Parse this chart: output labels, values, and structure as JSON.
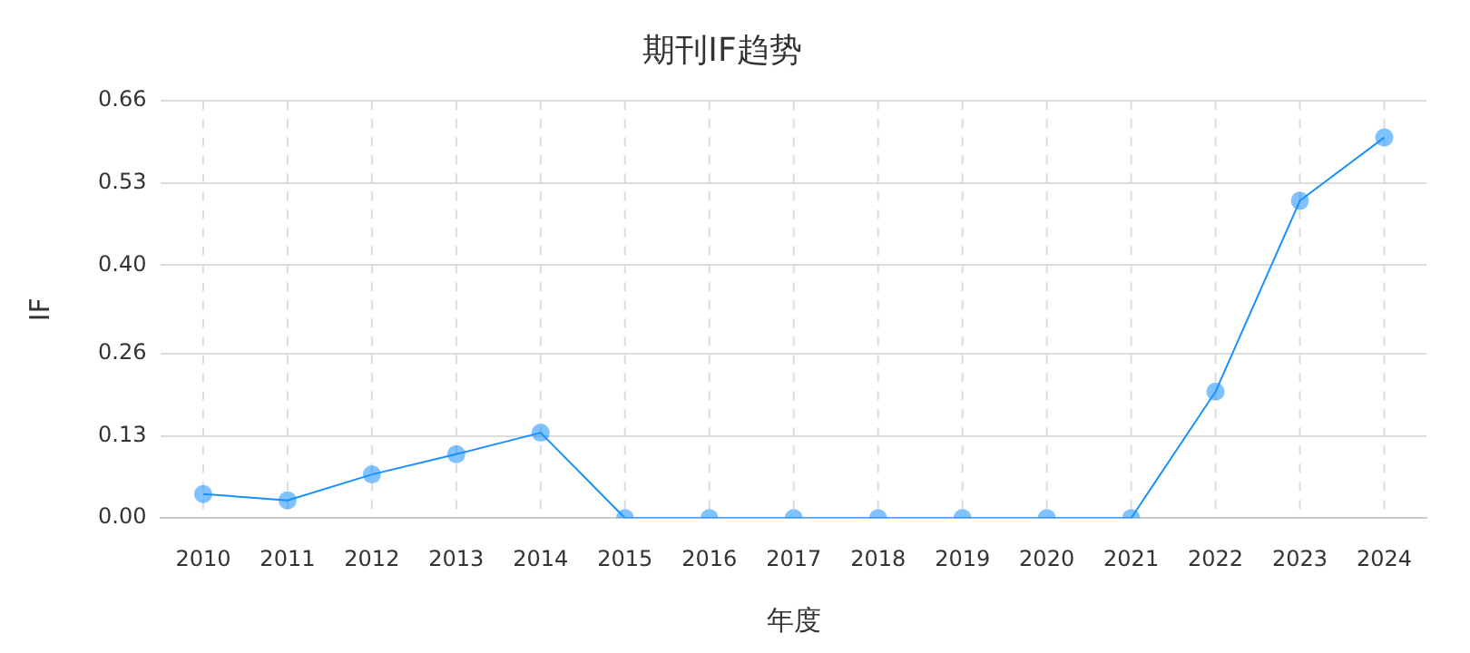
{
  "chart_data": {
    "type": "line",
    "title": "期刊IF趋势",
    "xlabel": "年度",
    "ylabel": "IF",
    "categories": [
      "2010",
      "2011",
      "2012",
      "2013",
      "2014",
      "2015",
      "2016",
      "2017",
      "2018",
      "2019",
      "2020",
      "2021",
      "2022",
      "2023",
      "2024"
    ],
    "series": [
      {
        "color": "#1890ff",
        "values": [
          0.038,
          0.028,
          0.069,
          0.101,
          0.135,
          0,
          0,
          0,
          0,
          0,
          0,
          0,
          0.2,
          0.502,
          0.602
        ]
      }
    ],
    "ylim": [
      0,
      0.66
    ],
    "yticks": [
      {
        "value": 0,
        "label": "0.00"
      },
      {
        "value": 0.13,
        "label": "0.13"
      },
      {
        "value": 0.26,
        "label": "0.26"
      },
      {
        "value": 0.4,
        "label": "0.40"
      },
      {
        "value": 0.53,
        "label": "0.53"
      },
      {
        "value": 0.66,
        "label": "0.66"
      }
    ],
    "grid": true,
    "legend": false,
    "marker": "circle",
    "line_style": "solid"
  }
}
